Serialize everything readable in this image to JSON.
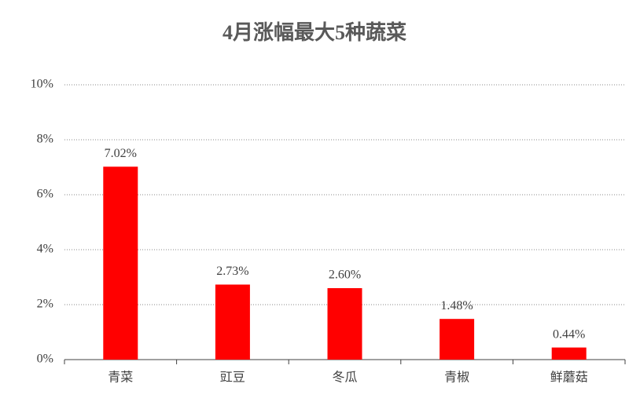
{
  "chart_data": {
    "type": "bar",
    "title": "4月涨幅最大5种蔬菜",
    "categories": [
      "青菜",
      "豇豆",
      "冬瓜",
      "青椒",
      "鲜蘑菇"
    ],
    "values": [
      7.02,
      2.73,
      2.6,
      1.48,
      0.44
    ],
    "value_labels": [
      "7.02%",
      "2.73%",
      "2.60%",
      "1.48%",
      "0.44%"
    ],
    "color": "#ff0000",
    "ylim": [
      0,
      10
    ],
    "yticks": [
      {
        "value": 0,
        "label": "0%"
      },
      {
        "value": 2,
        "label": "2%"
      },
      {
        "value": 4,
        "label": "4%"
      },
      {
        "value": 6,
        "label": "6%"
      },
      {
        "value": 8,
        "label": "8%"
      },
      {
        "value": 10,
        "label": "10%"
      }
    ],
    "grid": true
  }
}
